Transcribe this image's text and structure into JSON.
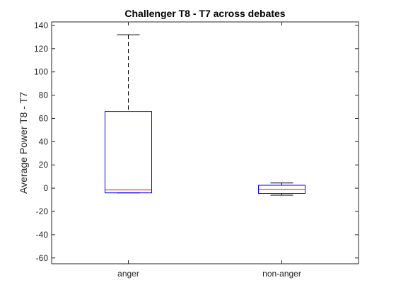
{
  "chart_data": {
    "type": "box",
    "title": "Challenger T8 - T7 across debates",
    "xlabel": "",
    "ylabel": "Average Power T8 - T7",
    "ylim": [
      -65,
      143
    ],
    "yticks": [
      -60,
      -40,
      -20,
      0,
      20,
      40,
      60,
      80,
      100,
      120,
      140
    ],
    "categories": [
      "anger",
      "non-anger"
    ],
    "series": [
      {
        "boxes": [
          {
            "category": "anger",
            "whisker_low": -4,
            "q1": -4,
            "median": -1.5,
            "q3": 66,
            "whisker_high": 132
          },
          {
            "category": "non-anger",
            "whisker_low": -6,
            "q1": -4.5,
            "median": -1,
            "q3": 2.5,
            "whisker_high": 4.5
          }
        ]
      }
    ],
    "grid": false,
    "legend": "none",
    "colors": {
      "box": "#0000ff",
      "median": "#ff0000",
      "whisker": "#000000",
      "axes": "#262626"
    }
  }
}
